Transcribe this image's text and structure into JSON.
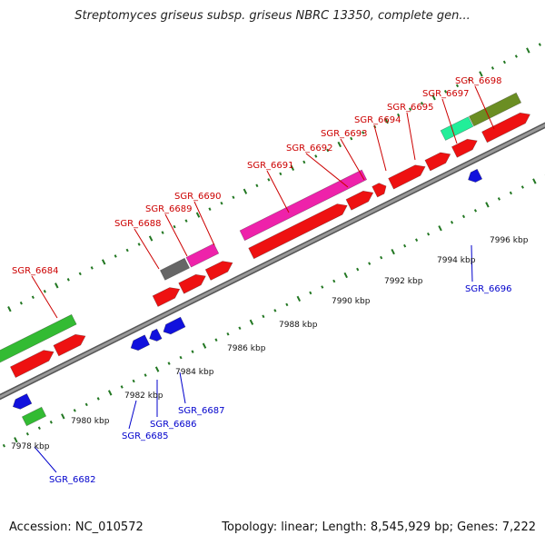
{
  "title": "Streptomyces griseus subsp. griseus NBRC 13350, complete gen...",
  "footer": {
    "accession": "Accession: NC_010572",
    "topology": "Topology: linear; Length: 8,545,929 bp; Genes: 7,222"
  },
  "colors": {
    "backbone": "#999999",
    "upper_label": "#cc0000",
    "lower_label": "#0000cc",
    "tick": "#227722",
    "cds_red": "#ee1111",
    "blue": "#1111dd",
    "green": "#33bb33",
    "pink": "#ee22aa",
    "gray": "#666666",
    "olive": "#6b8e23",
    "cyan": "#22ee99"
  },
  "scale_labels": [
    "7978 kbp",
    "7980 kbp",
    "7982 kbp",
    "7984 kbp",
    "7986 kbp",
    "7988 kbp",
    "7990 kbp",
    "7992 kbp",
    "7994 kbp",
    "7996 kbp"
  ],
  "upper_gene_labels": [
    "SGR_6684",
    "SGR_6688",
    "SGR_6689",
    "SGR_6690",
    "SGR_6691",
    "SGR_6692",
    "SGR_6693",
    "SGR_6694",
    "SGR_6695",
    "SGR_6697",
    "SGR_6698"
  ],
  "lower_gene_labels": [
    "SGR_6682",
    "SGR_6685",
    "SGR_6686",
    "SGR_6687",
    "SGR_6696"
  ]
}
